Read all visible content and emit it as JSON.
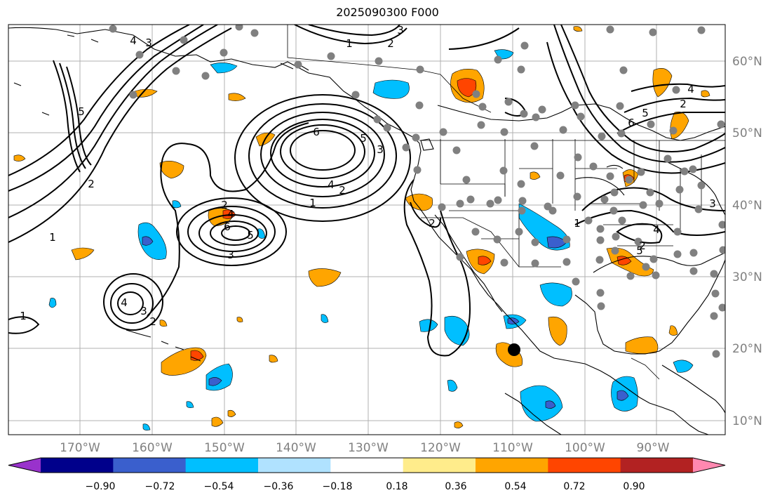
{
  "title": "2025090300 F000",
  "lon_labels": [
    "170°W",
    "160°W",
    "150°W",
    "140°W",
    "130°W",
    "120°W",
    "110°W",
    "100°W",
    "90°W"
  ],
  "lat_labels": [
    "60°N",
    "50°N",
    "40°N",
    "30°N",
    "20°N",
    "10°N"
  ],
  "colorbar": {
    "tick_labels": [
      "−0.90",
      "−0.72",
      "−0.54",
      "−0.36",
      "−0.18",
      "0.18",
      "0.36",
      "0.54",
      "0.72",
      "0.90"
    ],
    "colors": [
      "#9932cc",
      "#00008b",
      "#3a5fcd",
      "#00bfff",
      "#b0e2ff",
      "#ffffff",
      "#ffec8b",
      "#ffa500",
      "#ff4500",
      "#b22222",
      "#ff88b0"
    ]
  },
  "contour_labels": {
    "c_alaska_top_1": "1",
    "c_alaska_top_2": "2",
    "c_alaska_top_3": "3",
    "c_aleut_4": "4",
    "c_aleut_3": "3",
    "c_aleut_5": "5",
    "c_aleut_2": "2",
    "c_aleut_1": "1",
    "c_nepac_6": "6",
    "c_nepac_5": "5",
    "c_nepac_3": "3",
    "c_nepac_4": "4",
    "c_nepac_2": "2",
    "c_nepac_1": "1",
    "c_mid_2": "2",
    "c_mid_4": "4",
    "c_mid_6": "6",
    "c_mid_5": "5",
    "c_mid_3": "3",
    "c_hawaii_4": "4",
    "c_hawaii_3": "3",
    "c_hawaii_2": "2",
    "c_west_1": "1",
    "c_baja_2": "2",
    "c_east_6": "6",
    "c_east_5": "5",
    "c_east_4": "4",
    "c_east_2": "2",
    "c_east_1": "1",
    "c_east_3": "3",
    "c_east_5b": "5",
    "c_east_2b": "2",
    "c_east_4b": "4"
  }
}
